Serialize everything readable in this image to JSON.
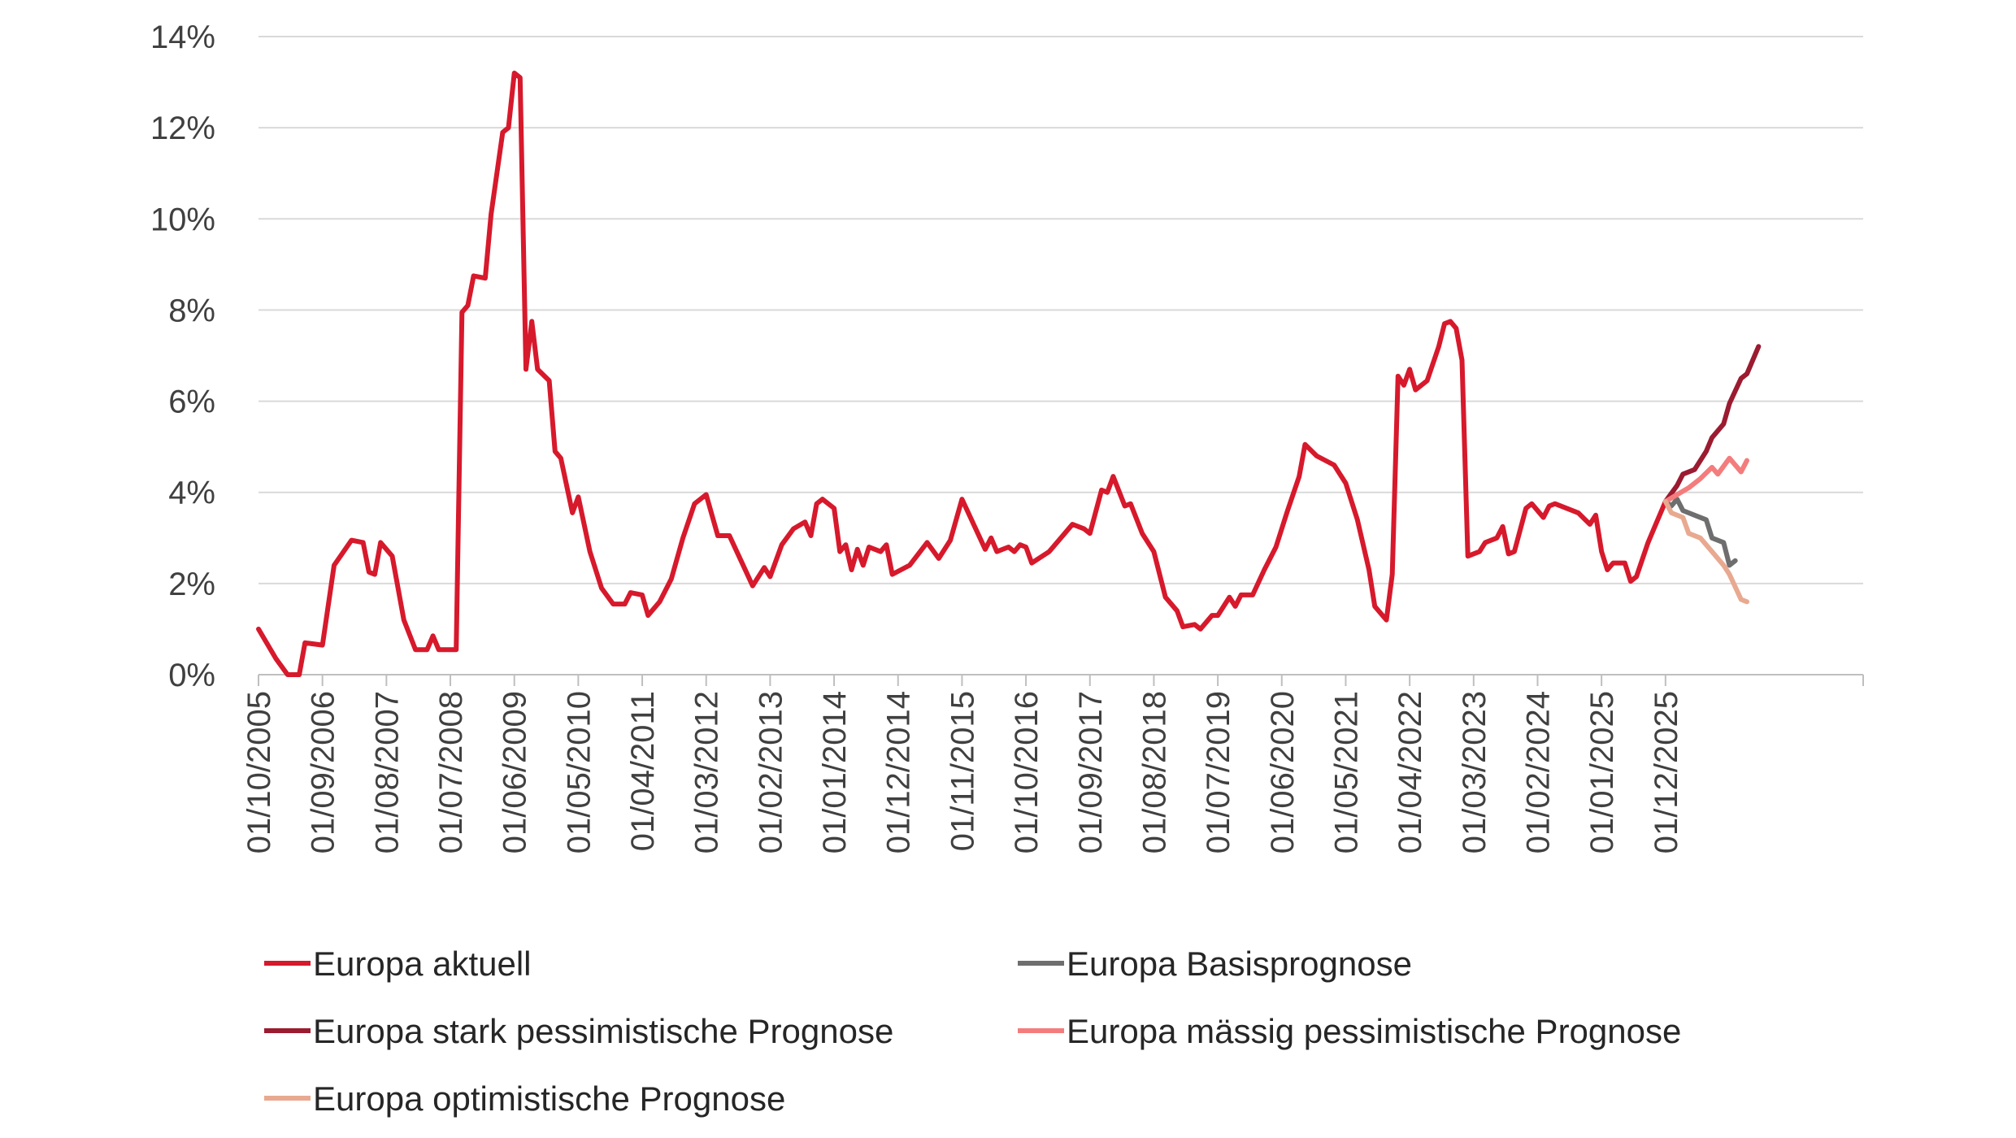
{
  "chart_data": {
    "type": "line",
    "title": "",
    "xlabel": "",
    "ylabel": "",
    "ylim": [
      0,
      14
    ],
    "y_ticks": [
      "0%",
      "2%",
      "4%",
      "6%",
      "8%",
      "10%",
      "12%",
      "14%"
    ],
    "x_range": [
      "2005-10",
      "2028-10"
    ],
    "grid": "horizontal",
    "legend_position": "bottom",
    "x_tick_labels": [
      {
        "date": "2005-10",
        "label": "01/10/2005"
      },
      {
        "date": "2006-09",
        "label": "01/09/2006"
      },
      {
        "date": "2007-08",
        "label": "01/08/2007"
      },
      {
        "date": "2008-07",
        "label": "01/07/2008"
      },
      {
        "date": "2009-06",
        "label": "01/06/2009"
      },
      {
        "date": "2010-05",
        "label": "01/05/2010"
      },
      {
        "date": "2011-04",
        "label": "01/04/2011"
      },
      {
        "date": "2012-03",
        "label": "01/03/2012"
      },
      {
        "date": "2013-02",
        "label": "01/02/2013"
      },
      {
        "date": "2014-01",
        "label": "01/01/2014"
      },
      {
        "date": "2014-12",
        "label": "01/12/2014"
      },
      {
        "date": "2015-11",
        "label": "01/11/2015"
      },
      {
        "date": "2016-10",
        "label": "01/10/2016"
      },
      {
        "date": "2017-09",
        "label": "01/09/2017"
      },
      {
        "date": "2018-08",
        "label": "01/08/2018"
      },
      {
        "date": "2019-07",
        "label": "01/07/2019"
      },
      {
        "date": "2020-06",
        "label": "01/06/2020"
      },
      {
        "date": "2021-05",
        "label": "01/05/2021"
      },
      {
        "date": "2022-04",
        "label": "01/04/2022"
      },
      {
        "date": "2023-03",
        "label": "01/03/2023"
      },
      {
        "date": "2024-02",
        "label": "01/02/2024"
      },
      {
        "date": "2025-01",
        "label": "01/01/2025"
      },
      {
        "date": "2025-12",
        "label": "01/12/2025"
      }
    ],
    "series": [
      {
        "name": "Europa aktuell",
        "color": "#D7192C",
        "points": [
          [
            "2005-10",
            1.0
          ],
          [
            "2006-01",
            0.35
          ],
          [
            "2006-03",
            0.0
          ],
          [
            "2006-05",
            0.0
          ],
          [
            "2006-06",
            0.7
          ],
          [
            "2006-09",
            0.65
          ],
          [
            "2006-11",
            2.4
          ],
          [
            "2007-02",
            2.95
          ],
          [
            "2007-04",
            2.9
          ],
          [
            "2007-05",
            2.25
          ],
          [
            "2007-06",
            2.2
          ],
          [
            "2007-07",
            2.9
          ],
          [
            "2007-09",
            2.6
          ],
          [
            "2007-11",
            1.2
          ],
          [
            "2008-01",
            0.55
          ],
          [
            "2008-03",
            0.55
          ],
          [
            "2008-04",
            0.85
          ],
          [
            "2008-05",
            0.55
          ],
          [
            "2008-08",
            0.55
          ],
          [
            "2008-09",
            7.95
          ],
          [
            "2008-10",
            8.1
          ],
          [
            "2008-11",
            8.75
          ],
          [
            "2009-01",
            8.7
          ],
          [
            "2009-02",
            10.1
          ],
          [
            "2009-04",
            11.9
          ],
          [
            "2009-05",
            12.0
          ],
          [
            "2009-06",
            13.2
          ],
          [
            "2009-07",
            13.1
          ],
          [
            "2009-08",
            6.7
          ],
          [
            "2009-09",
            7.75
          ],
          [
            "2009-10",
            6.7
          ],
          [
            "2009-12",
            6.45
          ],
          [
            "2010-01",
            4.9
          ],
          [
            "2010-02",
            4.75
          ],
          [
            "2010-04",
            3.55
          ],
          [
            "2010-05",
            3.9
          ],
          [
            "2010-07",
            2.7
          ],
          [
            "2010-09",
            1.9
          ],
          [
            "2010-11",
            1.55
          ],
          [
            "2011-01",
            1.55
          ],
          [
            "2011-02",
            1.8
          ],
          [
            "2011-04",
            1.75
          ],
          [
            "2011-05",
            1.3
          ],
          [
            "2011-07",
            1.6
          ],
          [
            "2011-09",
            2.1
          ],
          [
            "2011-11",
            3.0
          ],
          [
            "2012-01",
            3.75
          ],
          [
            "2012-03",
            3.95
          ],
          [
            "2012-05",
            3.05
          ],
          [
            "2012-07",
            3.05
          ],
          [
            "2012-09",
            2.5
          ],
          [
            "2012-11",
            1.95
          ],
          [
            "2013-01",
            2.35
          ],
          [
            "2013-02",
            2.15
          ],
          [
            "2013-04",
            2.85
          ],
          [
            "2013-06",
            3.2
          ],
          [
            "2013-08",
            3.35
          ],
          [
            "2013-09",
            3.05
          ],
          [
            "2013-10",
            3.75
          ],
          [
            "2013-11",
            3.85
          ],
          [
            "2014-01",
            3.65
          ],
          [
            "2014-02",
            2.7
          ],
          [
            "2014-03",
            2.85
          ],
          [
            "2014-04",
            2.3
          ],
          [
            "2014-05",
            2.75
          ],
          [
            "2014-06",
            2.4
          ],
          [
            "2014-07",
            2.8
          ],
          [
            "2014-09",
            2.7
          ],
          [
            "2014-10",
            2.85
          ],
          [
            "2014-11",
            2.2
          ],
          [
            "2015-02",
            2.4
          ],
          [
            "2015-05",
            2.9
          ],
          [
            "2015-07",
            2.55
          ],
          [
            "2015-09",
            2.95
          ],
          [
            "2015-11",
            3.85
          ],
          [
            "2016-01",
            3.3
          ],
          [
            "2016-03",
            2.75
          ],
          [
            "2016-04",
            3.0
          ],
          [
            "2016-05",
            2.7
          ],
          [
            "2016-07",
            2.8
          ],
          [
            "2016-08",
            2.7
          ],
          [
            "2016-09",
            2.85
          ],
          [
            "2016-10",
            2.8
          ],
          [
            "2016-11",
            2.45
          ],
          [
            "2017-02",
            2.7
          ],
          [
            "2017-04",
            3.0
          ],
          [
            "2017-06",
            3.3
          ],
          [
            "2017-08",
            3.2
          ],
          [
            "2017-09",
            3.1
          ],
          [
            "2017-11",
            4.05
          ],
          [
            "2017-12",
            4.0
          ],
          [
            "2018-01",
            4.35
          ],
          [
            "2018-03",
            3.7
          ],
          [
            "2018-04",
            3.75
          ],
          [
            "2018-06",
            3.1
          ],
          [
            "2018-08",
            2.7
          ],
          [
            "2018-10",
            1.7
          ],
          [
            "2018-12",
            1.4
          ],
          [
            "2019-01",
            1.05
          ],
          [
            "2019-03",
            1.1
          ],
          [
            "2019-04",
            1.0
          ],
          [
            "2019-06",
            1.3
          ],
          [
            "2019-07",
            1.3
          ],
          [
            "2019-09",
            1.7
          ],
          [
            "2019-10",
            1.5
          ],
          [
            "2019-11",
            1.75
          ],
          [
            "2020-01",
            1.75
          ],
          [
            "2020-03",
            2.3
          ],
          [
            "2020-05",
            2.8
          ],
          [
            "2020-07",
            3.6
          ],
          [
            "2020-09",
            4.35
          ],
          [
            "2020-10",
            5.05
          ],
          [
            "2020-12",
            4.8
          ],
          [
            "2021-03",
            4.6
          ],
          [
            "2021-05",
            4.2
          ],
          [
            "2021-07",
            3.4
          ],
          [
            "2021-09",
            2.3
          ],
          [
            "2021-10",
            1.5
          ],
          [
            "2021-12",
            1.2
          ],
          [
            "2022-01",
            2.2
          ],
          [
            "2022-02",
            6.55
          ],
          [
            "2022-03",
            6.35
          ],
          [
            "2022-04",
            6.7
          ],
          [
            "2022-05",
            6.25
          ],
          [
            "2022-07",
            6.45
          ],
          [
            "2022-09",
            7.2
          ],
          [
            "2022-10",
            7.7
          ],
          [
            "2022-11",
            7.75
          ],
          [
            "2022-12",
            7.6
          ],
          [
            "2023-01",
            6.9
          ],
          [
            "2023-02",
            2.6
          ],
          [
            "2023-04",
            2.7
          ],
          [
            "2023-05",
            2.9
          ],
          [
            "2023-07",
            3.0
          ],
          [
            "2023-08",
            3.25
          ],
          [
            "2023-09",
            2.65
          ],
          [
            "2023-10",
            2.7
          ],
          [
            "2023-12",
            3.65
          ],
          [
            "2024-01",
            3.75
          ],
          [
            "2024-03",
            3.45
          ],
          [
            "2024-04",
            3.7
          ],
          [
            "2024-05",
            3.75
          ],
          [
            "2024-07",
            3.65
          ],
          [
            "2024-09",
            3.55
          ],
          [
            "2024-11",
            3.3
          ],
          [
            "2024-12",
            3.5
          ],
          [
            "2025-01",
            2.7
          ],
          [
            "2025-02",
            2.3
          ],
          [
            "2025-03",
            2.45
          ],
          [
            "2025-05",
            2.45
          ],
          [
            "2025-06",
            2.05
          ],
          [
            "2025-07",
            2.15
          ],
          [
            "2025-09",
            2.9
          ],
          [
            "2025-10",
            3.2
          ],
          [
            "2025-12",
            3.8
          ]
        ]
      },
      {
        "name": "Europa Basisprognose",
        "color": "#6E6E6E",
        "points": [
          [
            "2025-12",
            3.8
          ],
          [
            "2026-01",
            3.7
          ],
          [
            "2026-02",
            3.85
          ],
          [
            "2026-03",
            3.6
          ],
          [
            "2026-05",
            3.5
          ],
          [
            "2026-07",
            3.4
          ],
          [
            "2026-08",
            3.0
          ],
          [
            "2026-10",
            2.9
          ],
          [
            "2026-11",
            2.4
          ],
          [
            "2026-12",
            2.5
          ]
        ]
      },
      {
        "name": "Europa stark pessimistische Prognose",
        "color": "#9B1B30",
        "points": [
          [
            "2025-12",
            3.8
          ],
          [
            "2026-02",
            4.15
          ],
          [
            "2026-03",
            4.4
          ],
          [
            "2026-05",
            4.5
          ],
          [
            "2026-07",
            4.9
          ],
          [
            "2026-08",
            5.2
          ],
          [
            "2026-10",
            5.5
          ],
          [
            "2026-11",
            5.95
          ],
          [
            "2027-01",
            6.5
          ],
          [
            "2027-02",
            6.6
          ],
          [
            "2027-04",
            7.2
          ]
        ]
      },
      {
        "name": "Europa mässig pessimistische Prognose",
        "color": "#F47C7C",
        "points": [
          [
            "2025-12",
            3.8
          ],
          [
            "2026-02",
            3.95
          ],
          [
            "2026-04",
            4.1
          ],
          [
            "2026-06",
            4.3
          ],
          [
            "2026-08",
            4.55
          ],
          [
            "2026-09",
            4.4
          ],
          [
            "2026-11",
            4.75
          ],
          [
            "2027-01",
            4.45
          ],
          [
            "2027-02",
            4.7
          ]
        ]
      },
      {
        "name": "Europa optimistische Prognose",
        "color": "#E8A990",
        "points": [
          [
            "2025-12",
            3.8
          ],
          [
            "2026-01",
            3.55
          ],
          [
            "2026-03",
            3.45
          ],
          [
            "2026-04",
            3.1
          ],
          [
            "2026-06",
            3.0
          ],
          [
            "2026-08",
            2.7
          ],
          [
            "2026-10",
            2.4
          ],
          [
            "2026-11",
            2.2
          ],
          [
            "2027-01",
            1.65
          ],
          [
            "2027-02",
            1.6
          ]
        ]
      }
    ]
  }
}
